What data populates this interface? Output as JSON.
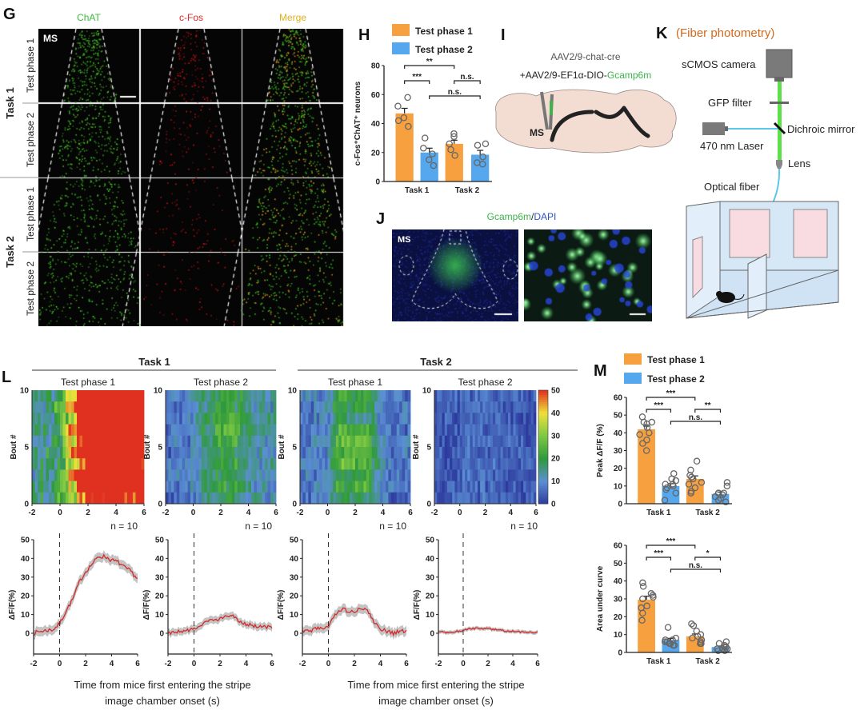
{
  "panels": {
    "G": {
      "label": "G",
      "columns": [
        "ChAT",
        "c-Fos",
        "Merge"
      ],
      "column_colors": [
        "#3dbb3d",
        "#e02828",
        "#e0b020"
      ],
      "region": "MS",
      "tasks": [
        {
          "label": "Task 1",
          "phases": [
            "Test phase 1",
            "Test phase 2"
          ]
        },
        {
          "label": "Task 2",
          "phases": [
            "Test phase 1",
            "Test phase 2"
          ]
        }
      ]
    },
    "H": {
      "label": "H"
    },
    "I": {
      "label": "I",
      "line1": "AAV2/9-chat-cre",
      "line2_prefix": "+AAV2/9-EF1α-DIO-",
      "line2_green": "Gcamp6m",
      "region": "MS"
    },
    "J": {
      "label": "J",
      "title_green": "Gcamp6m",
      "title_sep": "/",
      "title_blue": "DAPI",
      "region": "MS"
    },
    "K": {
      "label": "K",
      "title": "(Fiber photometry)",
      "title_color": "#d2691e",
      "camera": "sCMOS camera",
      "filter": "GFP filter",
      "mirror": "Dichroic mirror",
      "laser": "470 nm Laser",
      "lens": "Lens",
      "fiber": "Optical fiber"
    },
    "L": {
      "label": "L",
      "tasks": [
        "Task 1",
        "Task 2"
      ],
      "xlabel_line1": "Time from mice first entering the stripe",
      "xlabel_line2": "image chamber onset (s)"
    },
    "M": {
      "label": "M"
    }
  },
  "colors": {
    "test_phase_1": "#f7a040",
    "test_phase_2": "#55a8ee",
    "trace": "#d42a2a",
    "sem_band": "#b8b8b8"
  },
  "chart_data": [
    {
      "id": "H",
      "type": "bar",
      "legend": [
        "Test phase 1",
        "Test phase 2"
      ],
      "legend_position": "top",
      "ylabel": "c-Fos⁺ChAT⁺ neurons",
      "ylim": [
        0,
        80
      ],
      "yticks": [
        "0",
        "20",
        "40",
        "60",
        "80"
      ],
      "categories": [
        "Task 1",
        "Task 2"
      ],
      "series": [
        {
          "name": "Test phase 1",
          "values": [
            47,
            26
          ],
          "sem": [
            3.5,
            2.5
          ],
          "points": [
            [
              58,
              52,
              44,
              42,
              38
            ],
            [
              33,
              31,
              26,
              22,
              18
            ]
          ]
        },
        {
          "name": "Test phase 2",
          "values": [
            20,
            18.5
          ],
          "sem": [
            3,
            3
          ],
          "points": [
            [
              30,
              23,
              19,
              15,
              11
            ],
            [
              26,
              25,
              17,
              13,
              12
            ]
          ]
        }
      ],
      "significance": [
        {
          "a": [
            0,
            0
          ],
          "b": [
            1,
            0
          ],
          "label": "**"
        },
        {
          "a": [
            0,
            0
          ],
          "b": [
            0,
            1
          ],
          "label": "***"
        },
        {
          "a": [
            1,
            0
          ],
          "b": [
            1,
            1
          ],
          "label": "n.s."
        },
        {
          "a": [
            0,
            1
          ],
          "b": [
            1,
            1
          ],
          "label": "n.s."
        }
      ]
    },
    {
      "id": "M-peak",
      "type": "bar",
      "legend": [
        "Test phase 1",
        "Test phase 2"
      ],
      "legend_position": "top",
      "ylabel": "Peak ΔF/F (%)",
      "ylim": [
        0,
        60
      ],
      "yticks": [
        "0",
        "10",
        "20",
        "30",
        "40",
        "50",
        "60"
      ],
      "categories": [
        "Task 1",
        "Task 2"
      ],
      "series": [
        {
          "name": "Test phase 1",
          "values": [
            42,
            14
          ],
          "sem": [
            1.8,
            1.7
          ],
          "points": [
            [
              49,
              46,
              45,
              46,
              43,
              40,
              39,
              36,
              34,
              30
            ],
            [
              24,
              19,
              16,
              15,
              14,
              12,
              11,
              9,
              7,
              6
            ]
          ]
        },
        {
          "name": "Test phase 2",
          "values": [
            10,
            5.5
          ],
          "sem": [
            1.3,
            1.1
          ],
          "points": [
            [
              17,
              14,
              13,
              11,
              11,
              10,
              9,
              8,
              6,
              2
            ],
            [
              12,
              10,
              6,
              6,
              6,
              5,
              4,
              3,
              2,
              1
            ]
          ]
        }
      ],
      "significance": [
        {
          "a": [
            0,
            0
          ],
          "b": [
            1,
            0
          ],
          "label": "***"
        },
        {
          "a": [
            0,
            0
          ],
          "b": [
            0,
            1
          ],
          "label": "***"
        },
        {
          "a": [
            1,
            0
          ],
          "b": [
            1,
            1
          ],
          "label": "**"
        },
        {
          "a": [
            0,
            1
          ],
          "b": [
            1,
            1
          ],
          "label": "n.s."
        }
      ]
    },
    {
      "id": "M-auc",
      "type": "bar",
      "ylabel": "Area under curve",
      "ylim": [
        0,
        60
      ],
      "yticks": [
        "0",
        "10",
        "20",
        "30",
        "40",
        "50",
        "60"
      ],
      "categories": [
        "Task 1",
        "Task 2"
      ],
      "series": [
        {
          "name": "Test phase 1",
          "values": [
            29.5,
            9
          ],
          "sem": [
            2,
            1.3
          ],
          "points": [
            [
              39,
              37,
              33,
              32,
              31,
              30,
              26,
              25,
              22,
              18
            ],
            [
              16,
              15,
              12,
              10,
              9,
              8,
              7,
              6,
              5,
              5
            ]
          ]
        },
        {
          "name": "Test phase 2",
          "values": [
            7,
            3
          ],
          "sem": [
            0.9,
            0.6
          ],
          "points": [
            [
              14,
              8,
              7,
              7,
              6,
              6,
              5,
              5,
              4,
              4
            ],
            [
              6,
              5,
              4,
              3,
              3,
              2,
              2,
              2,
              1,
              1
            ]
          ]
        }
      ],
      "significance": [
        {
          "a": [
            0,
            0
          ],
          "b": [
            1,
            0
          ],
          "label": "***"
        },
        {
          "a": [
            0,
            0
          ],
          "b": [
            0,
            1
          ],
          "label": "***"
        },
        {
          "a": [
            1,
            0
          ],
          "b": [
            1,
            1
          ],
          "label": "*"
        },
        {
          "a": [
            0,
            1
          ],
          "b": [
            1,
            1
          ],
          "label": "n.s."
        }
      ]
    },
    {
      "id": "L-heatmaps",
      "type": "heatmap",
      "titles": [
        "Test phase 1",
        "Test phase 2",
        "Test phase 1",
        "Test phase 2"
      ],
      "ylabel": "Bout #",
      "ylim": [
        0,
        10
      ],
      "yticks": [
        "0",
        "5",
        "10"
      ],
      "xlim": [
        -2,
        6
      ],
      "xticks": [
        "-2",
        "0",
        "2",
        "4",
        "6"
      ],
      "colorbar": {
        "range": [
          0,
          50
        ],
        "ticks": [
          "0",
          "10",
          "20",
          "30",
          "40",
          "50"
        ],
        "colormap": [
          "#2d3a9e",
          "#5b8fd3",
          "#2f9a3c",
          "#7dc843",
          "#eee03a",
          "#e0301f"
        ]
      }
    },
    {
      "id": "L-traces",
      "type": "line",
      "ylabel": "ΔF/F(%)",
      "ylim": [
        -11,
        50
      ],
      "yticks": [
        "0",
        "10",
        "20",
        "30",
        "40",
        "50"
      ],
      "xlim": [
        -2,
        6
      ],
      "xticks": [
        "-2",
        "0",
        "2",
        "4",
        "6"
      ],
      "annotation": "n = 10",
      "x": [
        -2,
        -1.5,
        -1,
        -0.5,
        0,
        0.5,
        1,
        1.5,
        2,
        2.5,
        3,
        3.5,
        4,
        4.5,
        5,
        5.5,
        6
      ],
      "series": [
        {
          "values": [
            0,
            1,
            1.5,
            2,
            5,
            12,
            18,
            27,
            33,
            37,
            41,
            41,
            39,
            38,
            35,
            33,
            29
          ],
          "sem": 2.5
        },
        {
          "values": [
            0,
            0.5,
            1,
            1.5,
            2,
            4,
            6,
            7,
            8,
            9,
            9,
            6,
            5,
            4,
            3.5,
            3.5,
            3
          ],
          "sem": 2
        },
        {
          "values": [
            1,
            1,
            2,
            3,
            3,
            10,
            13,
            12,
            12,
            13,
            12,
            6,
            2,
            1,
            0,
            1,
            1
          ],
          "sem": 2.5
        },
        {
          "values": [
            1,
            0.5,
            0.5,
            1,
            1.5,
            2.5,
            2.5,
            2.5,
            2.5,
            2,
            1.5,
            1.2,
            1,
            0.8,
            0.5,
            0.5,
            0.5
          ],
          "sem": 1
        }
      ]
    }
  ]
}
